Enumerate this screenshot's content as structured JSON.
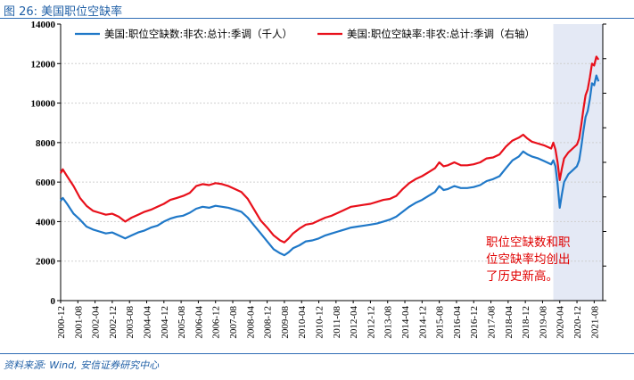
{
  "figure": {
    "title": "图 26: 美国职位空缺率",
    "source": "资料来源: Wind, 安信证券研究中心"
  },
  "chart_data": {
    "type": "line",
    "yleft_lim": [
      0,
      14000
    ],
    "yleft_ticks": [
      0,
      2000,
      4000,
      6000,
      8000,
      10000,
      12000,
      14000
    ],
    "x_range": [
      "2000-12",
      "2021-12"
    ],
    "x_ticks": [
      "2000-12",
      "2001-08",
      "2002-04",
      "2002-12",
      "2003-08",
      "2004-04",
      "2004-12",
      "2005-08",
      "2006-04",
      "2006-12",
      "2007-08",
      "2008-04",
      "2008-12",
      "2009-08",
      "2010-04",
      "2010-12",
      "2011-08",
      "2012-04",
      "2012-12",
      "2013-08",
      "2014-04",
      "2014-12",
      "2015-08",
      "2016-04",
      "2016-12",
      "2017-08",
      "2018-04",
      "2018-12",
      "2019-08",
      "2020-04",
      "2020-12",
      "2021-08"
    ],
    "grid": true,
    "legend_position": "top",
    "shaded_region": {
      "x_start": "2020-01",
      "x_end": "2021-12",
      "color": "#e4e9f5"
    },
    "annotation": [
      "职位空缺数和职",
      "位空缺率均创出",
      "了历史新高。"
    ],
    "series": [
      {
        "name": "美国:职位空缺数:非农:总计:季调（千人）",
        "color": "#1f78c8",
        "axis": "left",
        "points": [
          [
            "2000-12",
            5050
          ],
          [
            "2001-01",
            5200
          ],
          [
            "2001-03",
            4900
          ],
          [
            "2001-06",
            4400
          ],
          [
            "2001-09",
            4100
          ],
          [
            "2001-12",
            3750
          ],
          [
            "2002-03",
            3600
          ],
          [
            "2002-06",
            3500
          ],
          [
            "2002-09",
            3400
          ],
          [
            "2002-12",
            3450
          ],
          [
            "2003-03",
            3300
          ],
          [
            "2003-06",
            3150
          ],
          [
            "2003-09",
            3300
          ],
          [
            "2003-12",
            3450
          ],
          [
            "2004-03",
            3550
          ],
          [
            "2004-06",
            3700
          ],
          [
            "2004-09",
            3800
          ],
          [
            "2004-12",
            4000
          ],
          [
            "2005-03",
            4150
          ],
          [
            "2005-06",
            4250
          ],
          [
            "2005-09",
            4300
          ],
          [
            "2005-12",
            4450
          ],
          [
            "2006-03",
            4650
          ],
          [
            "2006-06",
            4750
          ],
          [
            "2006-09",
            4700
          ],
          [
            "2006-12",
            4800
          ],
          [
            "2007-03",
            4750
          ],
          [
            "2007-06",
            4700
          ],
          [
            "2007-09",
            4600
          ],
          [
            "2007-12",
            4500
          ],
          [
            "2008-03",
            4200
          ],
          [
            "2008-06",
            3800
          ],
          [
            "2008-09",
            3400
          ],
          [
            "2008-12",
            3000
          ],
          [
            "2009-03",
            2600
          ],
          [
            "2009-06",
            2400
          ],
          [
            "2009-08",
            2300
          ],
          [
            "2009-10",
            2450
          ],
          [
            "2009-12",
            2650
          ],
          [
            "2010-03",
            2800
          ],
          [
            "2010-06",
            3000
          ],
          [
            "2010-09",
            3050
          ],
          [
            "2010-12",
            3150
          ],
          [
            "2011-03",
            3300
          ],
          [
            "2011-06",
            3400
          ],
          [
            "2011-09",
            3500
          ],
          [
            "2011-12",
            3600
          ],
          [
            "2012-03",
            3700
          ],
          [
            "2012-06",
            3750
          ],
          [
            "2012-09",
            3800
          ],
          [
            "2012-12",
            3850
          ],
          [
            "2013-03",
            3900
          ],
          [
            "2013-06",
            4000
          ],
          [
            "2013-09",
            4100
          ],
          [
            "2013-12",
            4250
          ],
          [
            "2014-03",
            4500
          ],
          [
            "2014-06",
            4750
          ],
          [
            "2014-09",
            4950
          ],
          [
            "2014-12",
            5100
          ],
          [
            "2015-03",
            5300
          ],
          [
            "2015-06",
            5500
          ],
          [
            "2015-08",
            5800
          ],
          [
            "2015-10",
            5600
          ],
          [
            "2015-12",
            5650
          ],
          [
            "2016-03",
            5800
          ],
          [
            "2016-06",
            5700
          ],
          [
            "2016-09",
            5700
          ],
          [
            "2016-12",
            5750
          ],
          [
            "2017-03",
            5850
          ],
          [
            "2017-06",
            6050
          ],
          [
            "2017-09",
            6150
          ],
          [
            "2017-12",
            6300
          ],
          [
            "2018-03",
            6700
          ],
          [
            "2018-06",
            7100
          ],
          [
            "2018-09",
            7300
          ],
          [
            "2018-11",
            7550
          ],
          [
            "2019-01",
            7400
          ],
          [
            "2019-03",
            7300
          ],
          [
            "2019-06",
            7200
          ],
          [
            "2019-09",
            7050
          ],
          [
            "2019-12",
            6900
          ],
          [
            "2020-01",
            7100
          ],
          [
            "2020-02",
            6800
          ],
          [
            "2020-03",
            5900
          ],
          [
            "2020-04",
            4700
          ],
          [
            "2020-05",
            5400
          ],
          [
            "2020-06",
            6000
          ],
          [
            "2020-08",
            6400
          ],
          [
            "2020-10",
            6600
          ],
          [
            "2020-12",
            6800
          ],
          [
            "2021-01",
            7100
          ],
          [
            "2021-02",
            7800
          ],
          [
            "2021-03",
            8600
          ],
          [
            "2021-04",
            9300
          ],
          [
            "2021-05",
            9600
          ],
          [
            "2021-06",
            10200
          ],
          [
            "2021-07",
            11000
          ],
          [
            "2021-08",
            10900
          ],
          [
            "2021-09",
            11400
          ],
          [
            "2021-10",
            11100
          ]
        ]
      },
      {
        "name": "美国:职位空缺率:非农:总计:季调（右轴）",
        "color": "#e8101b",
        "axis": "right",
        "points": [
          [
            "2000-12",
            6450
          ],
          [
            "2001-01",
            6650
          ],
          [
            "2001-03",
            6300
          ],
          [
            "2001-06",
            5800
          ],
          [
            "2001-09",
            5200
          ],
          [
            "2001-12",
            4800
          ],
          [
            "2002-03",
            4550
          ],
          [
            "2002-06",
            4450
          ],
          [
            "2002-09",
            4350
          ],
          [
            "2002-12",
            4400
          ],
          [
            "2003-03",
            4250
          ],
          [
            "2003-06",
            4000
          ],
          [
            "2003-09",
            4200
          ],
          [
            "2003-12",
            4350
          ],
          [
            "2004-03",
            4500
          ],
          [
            "2004-06",
            4600
          ],
          [
            "2004-09",
            4750
          ],
          [
            "2004-12",
            4900
          ],
          [
            "2005-03",
            5100
          ],
          [
            "2005-06",
            5200
          ],
          [
            "2005-09",
            5300
          ],
          [
            "2005-12",
            5450
          ],
          [
            "2006-03",
            5800
          ],
          [
            "2006-06",
            5900
          ],
          [
            "2006-09",
            5850
          ],
          [
            "2006-12",
            5950
          ],
          [
            "2007-03",
            5900
          ],
          [
            "2007-06",
            5800
          ],
          [
            "2007-09",
            5650
          ],
          [
            "2007-12",
            5500
          ],
          [
            "2008-03",
            5150
          ],
          [
            "2008-06",
            4600
          ],
          [
            "2008-09",
            4050
          ],
          [
            "2008-12",
            3700
          ],
          [
            "2009-03",
            3300
          ],
          [
            "2009-06",
            3050
          ],
          [
            "2009-08",
            2950
          ],
          [
            "2009-10",
            3150
          ],
          [
            "2009-12",
            3400
          ],
          [
            "2010-03",
            3650
          ],
          [
            "2010-06",
            3850
          ],
          [
            "2010-09",
            3900
          ],
          [
            "2010-12",
            4050
          ],
          [
            "2011-03",
            4200
          ],
          [
            "2011-06",
            4300
          ],
          [
            "2011-09",
            4450
          ],
          [
            "2011-12",
            4600
          ],
          [
            "2012-03",
            4750
          ],
          [
            "2012-06",
            4800
          ],
          [
            "2012-09",
            4850
          ],
          [
            "2012-12",
            4900
          ],
          [
            "2013-03",
            5000
          ],
          [
            "2013-06",
            5100
          ],
          [
            "2013-09",
            5150
          ],
          [
            "2013-12",
            5300
          ],
          [
            "2014-03",
            5650
          ],
          [
            "2014-06",
            5950
          ],
          [
            "2014-09",
            6150
          ],
          [
            "2014-12",
            6300
          ],
          [
            "2015-03",
            6500
          ],
          [
            "2015-06",
            6700
          ],
          [
            "2015-08",
            7000
          ],
          [
            "2015-10",
            6800
          ],
          [
            "2015-12",
            6850
          ],
          [
            "2016-03",
            7000
          ],
          [
            "2016-06",
            6850
          ],
          [
            "2016-09",
            6850
          ],
          [
            "2016-12",
            6900
          ],
          [
            "2017-03",
            7000
          ],
          [
            "2017-06",
            7200
          ],
          [
            "2017-09",
            7250
          ],
          [
            "2017-12",
            7400
          ],
          [
            "2018-03",
            7800
          ],
          [
            "2018-06",
            8100
          ],
          [
            "2018-09",
            8250
          ],
          [
            "2018-11",
            8400
          ],
          [
            "2019-01",
            8200
          ],
          [
            "2019-03",
            8050
          ],
          [
            "2019-06",
            7950
          ],
          [
            "2019-09",
            7850
          ],
          [
            "2019-12",
            7700
          ],
          [
            "2020-01",
            8000
          ],
          [
            "2020-02",
            7650
          ],
          [
            "2020-03",
            7000
          ],
          [
            "2020-04",
            6100
          ],
          [
            "2020-05",
            6700
          ],
          [
            "2020-06",
            7200
          ],
          [
            "2020-08",
            7500
          ],
          [
            "2020-10",
            7700
          ],
          [
            "2020-12",
            7900
          ],
          [
            "2021-01",
            8200
          ],
          [
            "2021-02",
            8900
          ],
          [
            "2021-03",
            9700
          ],
          [
            "2021-04",
            10400
          ],
          [
            "2021-05",
            10700
          ],
          [
            "2021-06",
            11300
          ],
          [
            "2021-07",
            12000
          ],
          [
            "2021-08",
            11900
          ],
          [
            "2021-09",
            12350
          ],
          [
            "2021-10",
            12200
          ]
        ]
      }
    ]
  }
}
